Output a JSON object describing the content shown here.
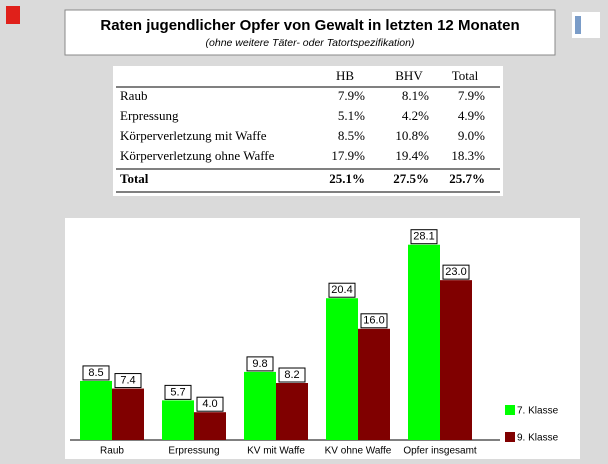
{
  "header": {
    "title": "Raten jugendlicher Opfer von Gewalt in letzten 12 Monaten",
    "subtitle": "(ohne weitere Täter- oder Tatortspezifikation)"
  },
  "table": {
    "columns": [
      "HB",
      "BHV",
      "Total"
    ],
    "rows": [
      [
        "Raub",
        "7.9%",
        "8.1%",
        "7.9%"
      ],
      [
        "Erpressung",
        "5.1%",
        "4.2%",
        "4.9%"
      ],
      [
        "Körperverletzung mit Waffe",
        "8.5%",
        "10.8%",
        "9.0%"
      ],
      [
        "Körperverletzung ohne Waffe",
        "17.9%",
        "19.4%",
        "18.3%"
      ],
      [
        "Total",
        "25.1%",
        "27.5%",
        "25.7%"
      ]
    ]
  },
  "chart_data": {
    "type": "bar",
    "categories": [
      "Raub",
      "Erpressung",
      "KV mit Waffe",
      "KV ohne Waffe",
      "Opfer insgesamt"
    ],
    "series": [
      {
        "name": "7. Klasse",
        "color": "#00ff00",
        "values": [
          8.5,
          5.7,
          9.8,
          20.4,
          28.1
        ],
        "value_labels": [
          "8.5",
          "5.7",
          "9.8",
          "20.4",
          "28.1"
        ]
      },
      {
        "name": "9. Klasse",
        "color": "#800000",
        "values": [
          7.4,
          4.0,
          8.2,
          16.0,
          23.0
        ],
        "value_labels": [
          "7.4",
          "4.0",
          "8.2",
          "16.0",
          "23.0"
        ]
      }
    ],
    "legend": "right"
  }
}
